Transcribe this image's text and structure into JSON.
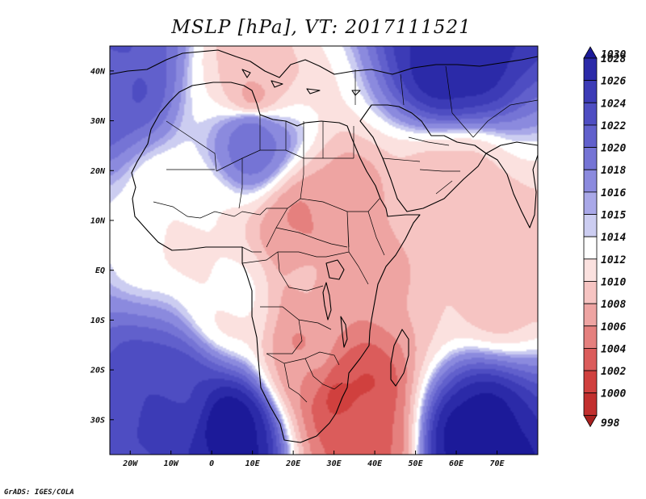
{
  "title": "MSLP [hPa], VT: 2017111521",
  "credit": "GrADS: IGES/COLA",
  "chart_data": {
    "type": "heatmap",
    "title": "MSLP [hPa], VT: 2017111521",
    "variable": "MSLP",
    "units": "hPa",
    "valid_time": "2017111521",
    "lon_range": [
      -25,
      80
    ],
    "lat_range": [
      -37,
      45
    ],
    "lon_ticks": [
      {
        "value": -20,
        "label": "20W"
      },
      {
        "value": -10,
        "label": "10W"
      },
      {
        "value": 0,
        "label": "0"
      },
      {
        "value": 10,
        "label": "10E"
      },
      {
        "value": 20,
        "label": "20E"
      },
      {
        "value": 30,
        "label": "30E"
      },
      {
        "value": 40,
        "label": "40E"
      },
      {
        "value": 50,
        "label": "50E"
      },
      {
        "value": 60,
        "label": "60E"
      },
      {
        "value": 70,
        "label": "70E"
      }
    ],
    "lat_ticks": [
      {
        "value": 40,
        "label": "40N"
      },
      {
        "value": 30,
        "label": "30N"
      },
      {
        "value": 20,
        "label": "20N"
      },
      {
        "value": 10,
        "label": "10N"
      },
      {
        "value": 0,
        "label": "EQ"
      },
      {
        "value": -10,
        "label": "10S"
      },
      {
        "value": -20,
        "label": "20S"
      },
      {
        "value": -30,
        "label": "30S"
      }
    ],
    "colorbar": {
      "levels": [
        1030,
        1028,
        1026,
        1024,
        1022,
        1020,
        1018,
        1016,
        1015,
        1014,
        1012,
        1010,
        1008,
        1006,
        1004,
        1002,
        1000,
        998
      ],
      "colors": [
        "#1c1a99",
        "#2b2aa8",
        "#3c3bb6",
        "#4e4dc2",
        "#6160cc",
        "#7574d5",
        "#8b8ade",
        "#a9a8e8",
        "#cccdf1",
        "#ffffff",
        "#fbe1df",
        "#f6c4c2",
        "#eea4a2",
        "#e5807e",
        "#db5c5b",
        "#d0403e",
        "#c22f2e",
        "#a8201f"
      ]
    },
    "pressure_features": [
      {
        "lon": 10,
        "lat": 36,
        "value": 1008
      },
      {
        "lon": 22,
        "lat": 7,
        "value": 1006
      },
      {
        "lon": 30,
        "lat": 11,
        "value": 1007
      },
      {
        "lon": 25,
        "lat": -3,
        "value": 1008
      },
      {
        "lon": 24,
        "lat": -18,
        "value": 1006
      },
      {
        "lon": 33,
        "lat": -24,
        "value": 1002
      },
      {
        "lon": 36,
        "lat": -34,
        "value": 1003
      },
      {
        "lon": 70,
        "lat": 0,
        "value": 1009
      },
      {
        "lon": 60,
        "lat": 15,
        "value": 1009
      },
      {
        "lon": 5,
        "lat": -33,
        "value": 1029
      },
      {
        "lon": -10,
        "lat": -26,
        "value": 1024
      },
      {
        "lon": 65,
        "lat": -35,
        "value": 1029
      },
      {
        "lon": 60,
        "lat": 43,
        "value": 1027
      },
      {
        "lon": -23,
        "lat": 41,
        "value": 1022
      },
      {
        "lon": 10,
        "lat": 27,
        "value": 1019
      },
      {
        "lon": -5,
        "lat": 10,
        "value": 1012
      },
      {
        "lon": 5,
        "lat": -5,
        "value": 1012
      }
    ]
  }
}
